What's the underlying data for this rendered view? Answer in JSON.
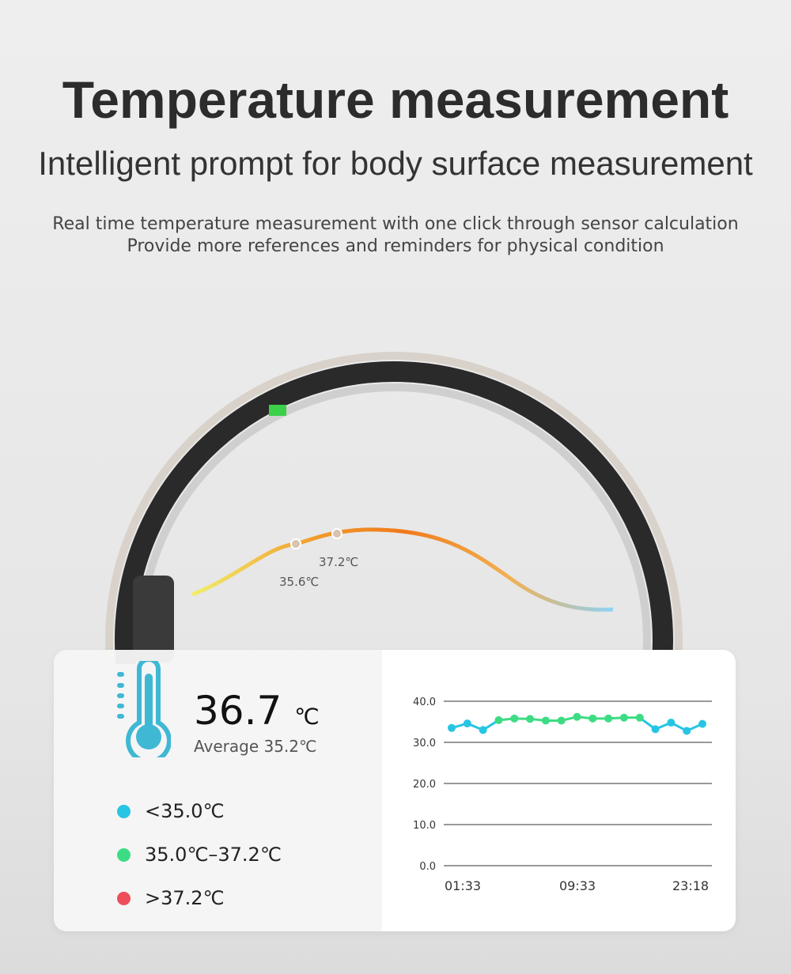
{
  "header": {
    "title": "Temperature measurement",
    "subtitle": "Intelligent prompt for body surface measurement",
    "desc_line1": "Real time temperature measurement with one click through sensor calculation",
    "desc_line2": "Provide more references and reminders for physical condition"
  },
  "ring": {
    "label_low": "35.6℃",
    "label_high": "37.2℃"
  },
  "reading": {
    "value": "36.7",
    "unit": "℃",
    "average": "Average 35.2℃"
  },
  "legend": [
    {
      "label": "<35.0℃",
      "color": "#27c5e3"
    },
    {
      "label": "35.0℃–37.2℃",
      "color": "#3ddc84"
    },
    {
      "label": ">37.2℃",
      "color": "#ee4d5a"
    }
  ],
  "chart_data": {
    "type": "line",
    "ylim": [
      0,
      40
    ],
    "yticks": [
      "0.0",
      "10.0",
      "20.0",
      "30.0",
      "40.0"
    ],
    "xticks": [
      "01:33",
      "09:33",
      "23:18"
    ],
    "grid": true,
    "values": [
      33.5,
      34.6,
      33.0,
      35.4,
      35.8,
      35.7,
      35.3,
      35.3,
      36.2,
      35.8,
      35.8,
      36.0,
      36.0,
      33.2,
      34.8,
      32.8,
      34.5
    ],
    "colors": {
      "low": "#27c5e3",
      "normal": "#3ddc84"
    }
  }
}
